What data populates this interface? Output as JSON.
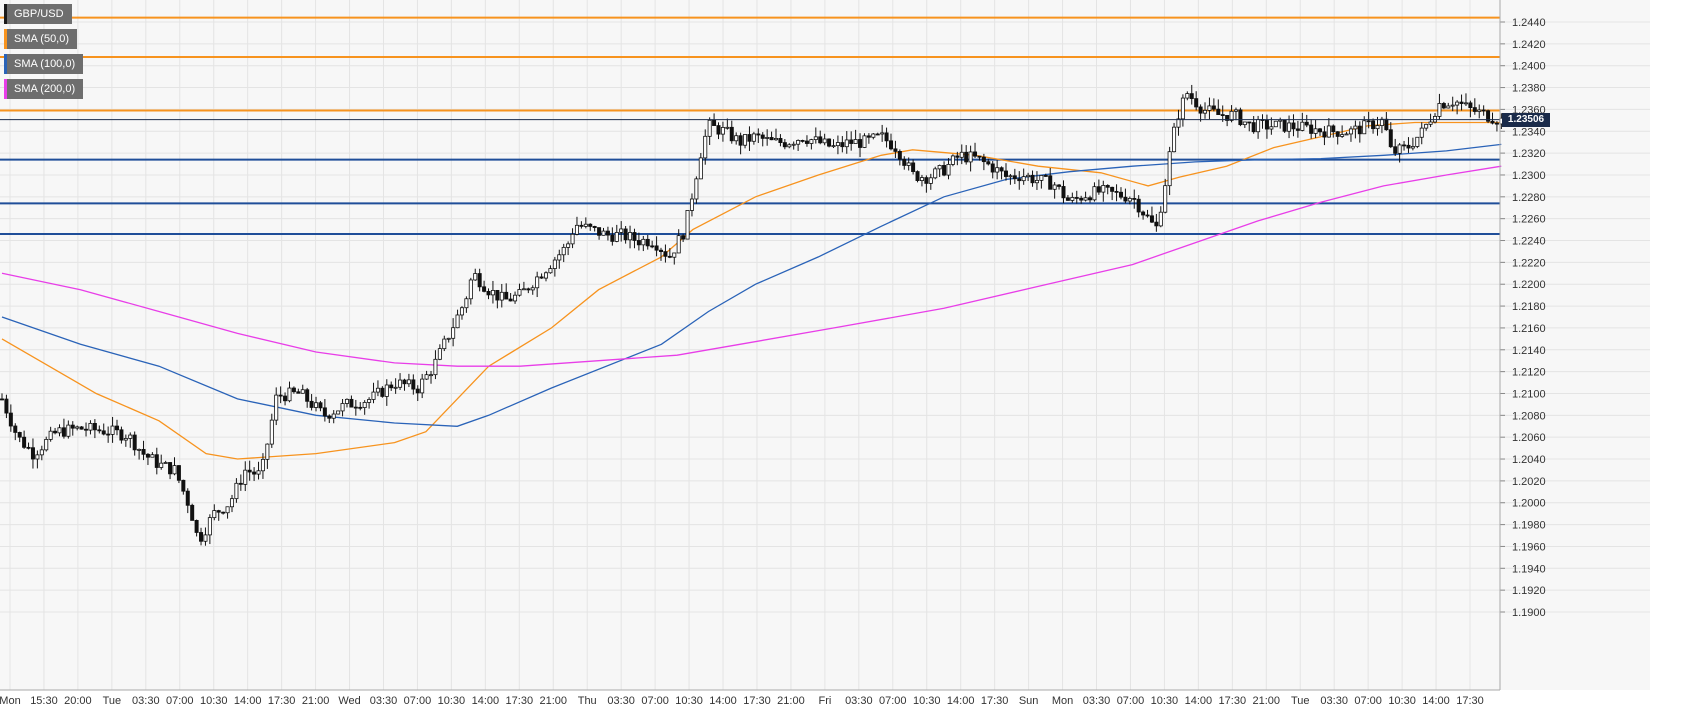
{
  "legend": [
    {
      "label": "GBP/USD",
      "color": "#1a1a1a"
    },
    {
      "label": "SMA (50,0)",
      "color": "#f7931e"
    },
    {
      "label": "SMA (100,0)",
      "color": "#2a63b8"
    },
    {
      "label": "SMA (200,0)",
      "color": "#e83ee8"
    }
  ],
  "last_price_label": "1.23506",
  "chart_data": {
    "type": "candlestick",
    "title": "",
    "ylim": [
      1.188,
      1.2455
    ],
    "y_ticks": [
      "1.2440",
      "1.2420",
      "1.2400",
      "1.2380",
      "1.2360",
      "1.2340",
      "1.2320",
      "1.2300",
      "1.2280",
      "1.2260",
      "1.2240",
      "1.2220",
      "1.2200",
      "1.2180",
      "1.2160",
      "1.2140",
      "1.2120",
      "1.2100",
      "1.2080",
      "1.2060",
      "1.2040",
      "1.2020",
      "1.2000",
      "1.1980",
      "1.1960",
      "1.1940",
      "1.1920",
      "1.1900"
    ],
    "x_ticks": [
      "Mon",
      "15:30",
      "20:00",
      "Tue",
      "03:30",
      "07:00",
      "10:30",
      "14:00",
      "17:30",
      "21:00",
      "Wed",
      "03:30",
      "07:00",
      "10:30",
      "14:00",
      "17:30",
      "21:00",
      "Thu",
      "03:30",
      "07:00",
      "10:30",
      "14:00",
      "17:30",
      "21:00",
      "Fri",
      "03:30",
      "07:00",
      "10:30",
      "14:00",
      "17:30",
      "Sun",
      "Mon",
      "03:30",
      "07:00",
      "10:30",
      "14:00",
      "17:30",
      "21:00",
      "Tue",
      "03:30",
      "07:00",
      "10:30",
      "14:00",
      "17:30"
    ],
    "grid": true,
    "last_price": 1.23506,
    "resistance_levels": [
      1.2444,
      1.2408,
      1.2359
    ],
    "support_levels": [
      1.2314,
      1.2274,
      1.2246
    ],
    "level_colors": {
      "resistance": "#f7931e",
      "support": "#1f4e99"
    },
    "price_path": [
      [
        0,
        1.2095
      ],
      [
        0.01,
        1.206
      ],
      [
        0.02,
        1.2045
      ],
      [
        0.035,
        1.2065
      ],
      [
        0.05,
        1.2068
      ],
      [
        0.065,
        1.2066
      ],
      [
        0.08,
        1.2062
      ],
      [
        0.09,
        1.2045
      ],
      [
        0.1,
        1.2035
      ],
      [
        0.11,
        1.203
      ],
      [
        0.12,
        1.1995
      ],
      [
        0.125,
        1.1965
      ],
      [
        0.135,
        1.199
      ],
      [
        0.145,
        1.2
      ],
      [
        0.155,
        1.203
      ],
      [
        0.165,
        1.2025
      ],
      [
        0.175,
        1.2098
      ],
      [
        0.19,
        1.21
      ],
      [
        0.205,
        1.208
      ],
      [
        0.22,
        1.209
      ],
      [
        0.235,
        1.2095
      ],
      [
        0.25,
        1.211
      ],
      [
        0.265,
        1.2105
      ],
      [
        0.275,
        1.2125
      ],
      [
        0.285,
        1.2155
      ],
      [
        0.295,
        1.2185
      ],
      [
        0.3,
        1.221
      ],
      [
        0.31,
        1.2195
      ],
      [
        0.32,
        1.2185
      ],
      [
        0.33,
        1.219
      ],
      [
        0.34,
        1.2205
      ],
      [
        0.35,
        1.222
      ],
      [
        0.36,
        1.2235
      ],
      [
        0.365,
        1.2255
      ],
      [
        0.375,
        1.225
      ],
      [
        0.385,
        1.2245
      ],
      [
        0.395,
        1.2245
      ],
      [
        0.405,
        1.224
      ],
      [
        0.415,
        1.224
      ],
      [
        0.425,
        1.2225
      ],
      [
        0.435,
        1.225
      ],
      [
        0.44,
        1.2285
      ],
      [
        0.445,
        1.232
      ],
      [
        0.45,
        1.2345
      ],
      [
        0.46,
        1.234
      ],
      [
        0.47,
        1.233
      ],
      [
        0.48,
        1.2335
      ],
      [
        0.49,
        1.233
      ],
      [
        0.5,
        1.233
      ],
      [
        0.51,
        1.2335
      ],
      [
        0.52,
        1.233
      ],
      [
        0.53,
        1.2325
      ],
      [
        0.54,
        1.233
      ],
      [
        0.55,
        1.233
      ],
      [
        0.56,
        1.2335
      ],
      [
        0.57,
        1.2325
      ],
      [
        0.58,
        1.23
      ],
      [
        0.59,
        1.2298
      ],
      [
        0.6,
        1.2305
      ],
      [
        0.61,
        1.2318
      ],
      [
        0.62,
        1.2315
      ],
      [
        0.63,
        1.2308
      ],
      [
        0.64,
        1.2298
      ],
      [
        0.65,
        1.23
      ],
      [
        0.66,
        1.2295
      ],
      [
        0.67,
        1.2292
      ],
      [
        0.68,
        1.2275
      ],
      [
        0.69,
        1.2282
      ],
      [
        0.7,
        1.2285
      ],
      [
        0.71,
        1.2282
      ],
      [
        0.72,
        1.228
      ],
      [
        0.725,
        1.227
      ],
      [
        0.735,
        1.225
      ],
      [
        0.74,
        1.2285
      ],
      [
        0.745,
        1.233
      ],
      [
        0.75,
        1.236
      ],
      [
        0.755,
        1.2375
      ],
      [
        0.765,
        1.236
      ],
      [
        0.775,
        1.2355
      ],
      [
        0.785,
        1.2355
      ],
      [
        0.795,
        1.2345
      ],
      [
        0.805,
        1.2345
      ],
      [
        0.815,
        1.2345
      ],
      [
        0.83,
        1.2343
      ],
      [
        0.845,
        1.234
      ],
      [
        0.86,
        1.234
      ],
      [
        0.87,
        1.2345
      ],
      [
        0.88,
        1.235
      ],
      [
        0.885,
        1.232
      ],
      [
        0.895,
        1.2325
      ],
      [
        0.905,
        1.234
      ],
      [
        0.915,
        1.2365
      ],
      [
        0.925,
        1.2368
      ],
      [
        0.935,
        1.236
      ],
      [
        0.945,
        1.2355
      ],
      [
        0.955,
        1.235
      ]
    ],
    "series": [
      {
        "name": "SMA (50,0)",
        "color": "#f7931e",
        "points": [
          [
            0,
            1.215
          ],
          [
            0.06,
            1.21
          ],
          [
            0.1,
            1.2075
          ],
          [
            0.13,
            1.2045
          ],
          [
            0.15,
            1.204
          ],
          [
            0.2,
            1.2045
          ],
          [
            0.25,
            1.2055
          ],
          [
            0.27,
            1.2065
          ],
          [
            0.29,
            1.2095
          ],
          [
            0.31,
            1.2125
          ],
          [
            0.35,
            1.216
          ],
          [
            0.38,
            1.2195
          ],
          [
            0.42,
            1.2225
          ],
          [
            0.44,
            1.225
          ],
          [
            0.48,
            1.228
          ],
          [
            0.52,
            1.23
          ],
          [
            0.56,
            1.2318
          ],
          [
            0.58,
            1.2323
          ],
          [
            0.62,
            1.2318
          ],
          [
            0.66,
            1.2308
          ],
          [
            0.7,
            1.2302
          ],
          [
            0.73,
            1.229
          ],
          [
            0.75,
            1.2298
          ],
          [
            0.78,
            1.2308
          ],
          [
            0.81,
            1.2325
          ],
          [
            0.84,
            1.2335
          ],
          [
            0.87,
            1.2345
          ],
          [
            0.9,
            1.2348
          ],
          [
            0.94,
            1.2348
          ],
          [
            0.955,
            1.2348
          ]
        ]
      },
      {
        "name": "SMA (100,0)",
        "color": "#2a63b8",
        "points": [
          [
            0,
            1.217
          ],
          [
            0.05,
            1.2145
          ],
          [
            0.1,
            1.2125
          ],
          [
            0.15,
            1.2095
          ],
          [
            0.2,
            1.208
          ],
          [
            0.25,
            1.2073
          ],
          [
            0.29,
            1.207
          ],
          [
            0.31,
            1.208
          ],
          [
            0.35,
            1.2105
          ],
          [
            0.42,
            1.2145
          ],
          [
            0.45,
            1.2175
          ],
          [
            0.48,
            1.22
          ],
          [
            0.52,
            1.2225
          ],
          [
            0.56,
            1.2253
          ],
          [
            0.6,
            1.228
          ],
          [
            0.64,
            1.2296
          ],
          [
            0.68,
            1.2303
          ],
          [
            0.72,
            1.2308
          ],
          [
            0.76,
            1.2312
          ],
          [
            0.8,
            1.2314
          ],
          [
            0.84,
            1.2315
          ],
          [
            0.88,
            1.2318
          ],
          [
            0.92,
            1.2322
          ],
          [
            0.955,
            1.2328
          ]
        ]
      },
      {
        "name": "SMA (200,0)",
        "color": "#e83ee8",
        "points": [
          [
            0,
            1.221
          ],
          [
            0.05,
            1.2195
          ],
          [
            0.1,
            1.2175
          ],
          [
            0.15,
            1.2155
          ],
          [
            0.2,
            1.2138
          ],
          [
            0.25,
            1.2128
          ],
          [
            0.29,
            1.2125
          ],
          [
            0.33,
            1.2125
          ],
          [
            0.38,
            1.213
          ],
          [
            0.43,
            1.2135
          ],
          [
            0.47,
            1.2145
          ],
          [
            0.53,
            1.216
          ],
          [
            0.6,
            1.2178
          ],
          [
            0.66,
            1.2198
          ],
          [
            0.72,
            1.2218
          ],
          [
            0.76,
            1.2238
          ],
          [
            0.8,
            1.2258
          ],
          [
            0.84,
            1.2275
          ],
          [
            0.88,
            1.229
          ],
          [
            0.92,
            1.23
          ],
          [
            0.955,
            1.2308
          ]
        ]
      }
    ]
  }
}
